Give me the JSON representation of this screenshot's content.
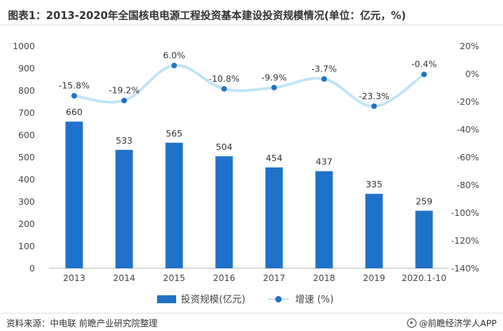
{
  "title": "图表1：2013-2020年全国核电电源工程投资基本建设投资规模情况(单位：亿元，%)",
  "source": "资料来源：中电联 前瞻产业研究院整理",
  "brand": "@前瞻经济学人APP",
  "colors": {
    "bar": "#1f72c9",
    "line": "#bfe4f7",
    "marker": "#1f72c9"
  },
  "chart_data": {
    "type": "bar",
    "categories": [
      "2013",
      "2014",
      "2015",
      "2016",
      "2017",
      "2018",
      "2019",
      "2020.1-10"
    ],
    "series": [
      {
        "name": "投资规模(亿元)",
        "type": "bar",
        "axis": "left",
        "values": [
          660,
          533,
          565,
          504,
          454,
          437,
          335,
          259
        ],
        "labels": [
          "660",
          "533",
          "565",
          "504",
          "454",
          "437",
          "335",
          "259"
        ]
      },
      {
        "name": "增速 (%)",
        "type": "line",
        "axis": "right",
        "values": [
          -15.8,
          -19.2,
          6.0,
          -10.8,
          -9.9,
          -3.7,
          -23.3,
          -0.4
        ],
        "labels": [
          "-15.8%",
          "-19.2%",
          "6.0%",
          "-10.8%",
          "-9.9%",
          "-3.7%",
          "-23.3%",
          "-0.4%"
        ]
      }
    ],
    "y_left": {
      "min": 0,
      "max": 1000,
      "ticks": [
        "0",
        "100",
        "200",
        "300",
        "400",
        "500",
        "600",
        "700",
        "800",
        "900",
        "1000"
      ]
    },
    "y_right": {
      "min": -140,
      "max": 20,
      "ticks": [
        "-140%",
        "-120%",
        "-100%",
        "-80%",
        "-60%",
        "-40%",
        "-20%",
        "0%",
        "20%"
      ]
    },
    "grid": false,
    "legend_position": "bottom"
  }
}
